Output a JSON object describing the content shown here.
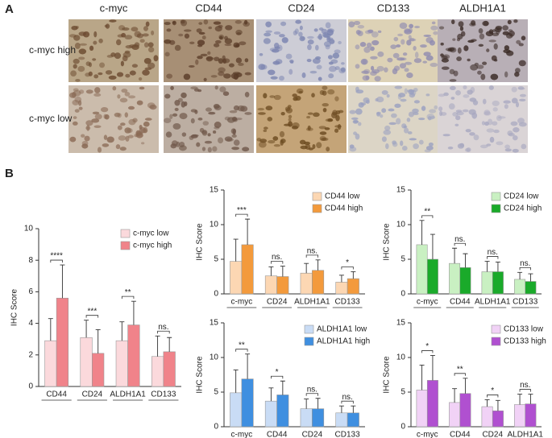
{
  "panel_a": {
    "label": "A",
    "columns": [
      "c-myc",
      "CD44",
      "CD24",
      "CD133",
      "ALDH1A1"
    ],
    "rows": [
      "c-myc high",
      "c-myc low"
    ]
  },
  "panel_b": {
    "label": "B"
  },
  "chart_data": [
    {
      "type": "bar",
      "ylabel": "IHC Score",
      "categories": [
        "CD44",
        "CD24",
        "ALDH1A1",
        "CD133"
      ],
      "series": [
        {
          "name": "c-myc low",
          "color": "#fbd9dc",
          "values": [
            2.9,
            3.1,
            2.9,
            1.9
          ],
          "errors": [
            1.4,
            1.1,
            1.2,
            1.3
          ]
        },
        {
          "name": "c-myc high",
          "color": "#f0838a",
          "values": [
            5.6,
            2.1,
            3.9,
            2.2
          ],
          "errors": [
            2.1,
            1.5,
            1.5,
            0.9
          ]
        }
      ],
      "annotations": [
        "****",
        "***",
        "**",
        "ns."
      ],
      "ylim": [
        0,
        10
      ],
      "yticks": [
        0,
        2,
        4,
        6,
        8,
        10
      ]
    },
    {
      "type": "bar",
      "ylabel": "IHC Score",
      "categories": [
        "c-myc",
        "CD24",
        "ALDH1A1",
        "CD133"
      ],
      "series": [
        {
          "name": "CD44 low",
          "color": "#fcd7b3",
          "values": [
            4.7,
            2.6,
            3.0,
            1.7
          ],
          "errors": [
            3.2,
            1.3,
            1.4,
            1.0
          ]
        },
        {
          "name": "CD44 high",
          "color": "#f39a3c",
          "values": [
            7.1,
            2.5,
            3.4,
            2.2
          ],
          "errors": [
            3.7,
            1.5,
            1.5,
            1.0
          ]
        }
      ],
      "annotations": [
        "***",
        "ns.",
        "ns.",
        "*"
      ],
      "ylim": [
        0,
        15
      ],
      "yticks": [
        0,
        5,
        10,
        15
      ]
    },
    {
      "type": "bar",
      "ylabel": "IHC Score",
      "categories": [
        "c-myc",
        "CD44",
        "ALDH1A1",
        "CD133"
      ],
      "series": [
        {
          "name": "CD24 low",
          "color": "#c9f0c2",
          "values": [
            7.1,
            4.4,
            3.2,
            2.1
          ],
          "errors": [
            3.5,
            2.2,
            1.5,
            1.0
          ]
        },
        {
          "name": "CD24 high",
          "color": "#1aaa2a",
          "values": [
            5.0,
            3.8,
            3.2,
            1.8
          ],
          "errors": [
            3.6,
            2.0,
            1.4,
            1.1
          ]
        }
      ],
      "annotations": [
        "**",
        "ns.",
        "ns.",
        "ns."
      ],
      "ylim": [
        0,
        15
      ],
      "yticks": [
        0,
        5,
        10,
        15
      ]
    },
    {
      "type": "bar",
      "ylabel": "IHC Score",
      "categories": [
        "c-myc",
        "CD44",
        "CD24",
        "CD133"
      ],
      "series": [
        {
          "name": "ALDH1A1 low",
          "color": "#c9dcf5",
          "values": [
            4.9,
            3.7,
            2.6,
            2.0
          ],
          "errors": [
            3.3,
            1.9,
            1.4,
            1.0
          ]
        },
        {
          "name": "ALDH1A1 high",
          "color": "#3f8fe0",
          "values": [
            6.9,
            4.6,
            2.6,
            2.0
          ],
          "errors": [
            3.6,
            2.0,
            1.5,
            1.0
          ]
        }
      ],
      "annotations": [
        "**",
        "*",
        "ns.",
        "ns."
      ],
      "ylim": [
        0,
        15
      ],
      "yticks": [
        0,
        5,
        10,
        15
      ]
    },
    {
      "type": "bar",
      "ylabel": "IHC Score",
      "categories": [
        "c-myc",
        "CD44",
        "CD24",
        "ALDH1A1"
      ],
      "series": [
        {
          "name": "CD133 low",
          "color": "#f1d2f6",
          "values": [
            5.3,
            3.5,
            2.9,
            3.2
          ],
          "errors": [
            3.6,
            2.0,
            1.0,
            1.5
          ]
        },
        {
          "name": "CD133 high",
          "color": "#b050d0",
          "values": [
            6.7,
            4.8,
            2.3,
            3.3
          ],
          "errors": [
            3.6,
            2.2,
            1.5,
            1.4
          ]
        }
      ],
      "annotations": [
        "*",
        "**",
        "*",
        "ns."
      ],
      "ylim": [
        0,
        15
      ],
      "yticks": [
        0,
        5,
        10,
        15
      ]
    }
  ]
}
